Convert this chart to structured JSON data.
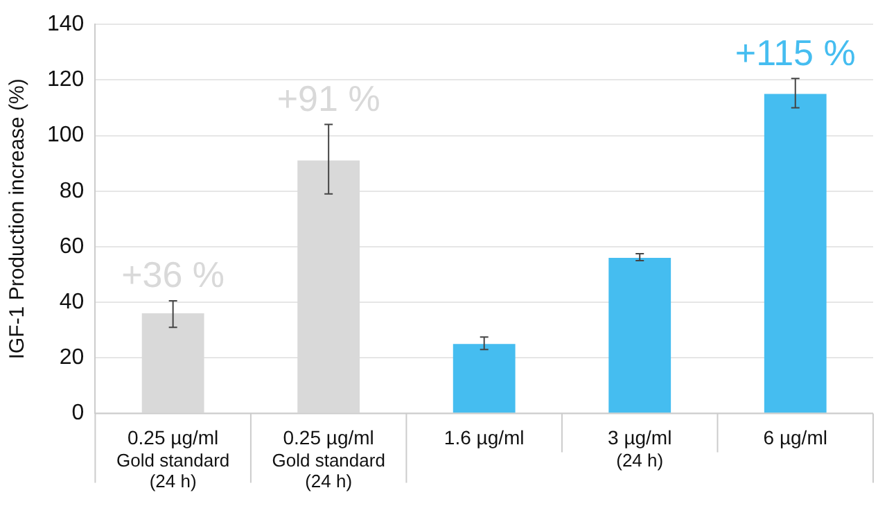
{
  "chart_data": {
    "type": "bar",
    "ylabel": "IGF-1 Production increase (%)",
    "categories": [
      "0.25 µg/ml",
      "0.25 µg/ml",
      "1.6 µg/ml",
      "3 µg/ml",
      "6 µg/ml"
    ],
    "values": [
      36,
      91,
      25,
      56,
      115
    ],
    "colors": [
      "#d9d9d9",
      "#d9d9d9",
      "#45bdf0",
      "#45bdf0",
      "#45bdf0"
    ],
    "errors": [
      [
        31,
        40.5
      ],
      [
        79,
        104
      ],
      [
        23,
        27.5
      ],
      [
        55,
        57.5
      ],
      [
        110,
        120.5
      ]
    ],
    "value_labels": [
      "+36 %",
      "+91 %",
      null,
      null,
      "+115 %"
    ],
    "annotations": [
      "Gold standard\n(24 h)",
      "Gold standard\n(24 h)",
      "(24 h)"
    ],
    "ylim": [
      0,
      140
    ],
    "yticks": [
      0,
      20,
      40,
      60,
      80,
      100,
      120,
      140
    ],
    "grid": "y",
    "legend": false
  }
}
